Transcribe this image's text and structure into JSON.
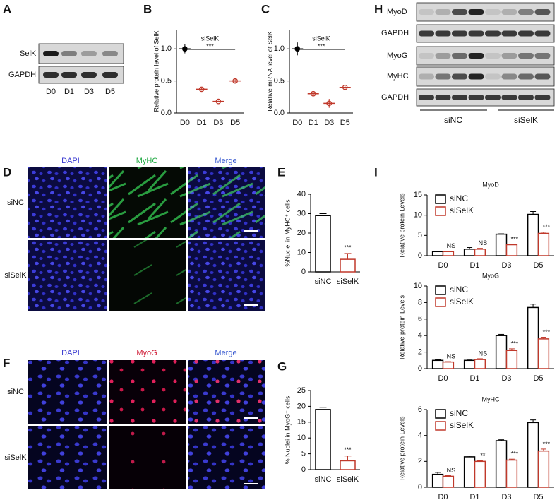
{
  "figure": {
    "letters": [
      "A",
      "B",
      "C",
      "D",
      "E",
      "F",
      "G",
      "H",
      "I"
    ],
    "blot_a": {
      "rows": [
        "SelK",
        "GAPDH"
      ],
      "lanes": [
        "D0",
        "D1",
        "D3",
        "D5"
      ]
    },
    "panel_d": {
      "columns": [
        "DAPI",
        "MyHC",
        "Merge"
      ],
      "rows": [
        "siNC",
        "siSelK"
      ]
    },
    "panel_f": {
      "columns": [
        "DAPI",
        "MyoG",
        "Merge"
      ],
      "rows": [
        "siNC",
        "siSelK"
      ]
    },
    "blot_h": {
      "rows": [
        "MyoD",
        "GAPDH",
        "MyoG",
        "MyHC",
        "GAPDH"
      ],
      "groups": [
        "siNC",
        "siSelK"
      ]
    }
  },
  "chart_data": [
    {
      "type": "dot",
      "y_label": "Relative protein level of SelK",
      "categories": [
        "D0",
        "D1",
        "D3",
        "D5"
      ],
      "values": [
        1.0,
        0.37,
        0.18,
        0.5
      ],
      "errors": [
        0.07,
        0.02,
        0.01,
        0.04
      ],
      "colors": [
        "#000000",
        "#c0392b",
        "#c0392b",
        "#c0392b"
      ],
      "annotation": "siSelK",
      "significance": "***",
      "ylim": [
        0,
        1.3
      ],
      "yticks": [
        {
          "value": 0,
          "label": "0.0"
        },
        0.5,
        {
          "value": 1,
          "label": "1.0"
        }
      ]
    },
    {
      "type": "dot",
      "y_label": "Relative mRNA level of SelK",
      "categories": [
        "D0",
        "D1",
        "D3",
        "D5"
      ],
      "values": [
        1.0,
        0.3,
        0.15,
        0.4
      ],
      "errors": [
        0.1,
        0.04,
        0.07,
        0.04
      ],
      "colors": [
        "#000000",
        "#c0392b",
        "#c0392b",
        "#c0392b"
      ],
      "annotation": "siSelK",
      "significance": "***",
      "ylim": [
        0,
        1.3
      ],
      "yticks": [
        {
          "value": 0,
          "label": "0.0"
        },
        0.5,
        {
          "value": 1,
          "label": "1.0"
        }
      ]
    },
    {
      "type": "bar",
      "y_label": "%Nuclei in MyHC⁺ cells",
      "categories": [
        "siNC",
        "siSelK"
      ],
      "values": [
        29,
        6.5
      ],
      "errors": [
        1,
        3
      ],
      "colors": [
        "#000000",
        "#c0392b"
      ],
      "annotations": [
        null,
        "***"
      ],
      "ylim": [
        0,
        40
      ],
      "yticks": [
        0,
        10,
        20,
        30,
        40
      ]
    },
    {
      "type": "bar",
      "y_label": "% Nuclei in MyoG⁺ cells",
      "categories": [
        "siNC",
        "siSelK"
      ],
      "values": [
        19,
        2.8
      ],
      "errors": [
        0.7,
        1.5
      ],
      "colors": [
        "#000000",
        "#c0392b"
      ],
      "annotations": [
        null,
        "***"
      ],
      "ylim": [
        0,
        25
      ],
      "yticks": [
        0,
        5,
        10,
        15,
        20,
        25
      ]
    },
    {
      "type": "grouped_bar",
      "title": "MyoD",
      "y_label": "Relative protein Levels",
      "categories": [
        "D0",
        "D1",
        "D3",
        "D5"
      ],
      "series": [
        {
          "name": "siNC",
          "color": "#000000",
          "values": [
            1.0,
            1.6,
            5.3,
            10.2
          ],
          "errors": [
            0.1,
            0.4,
            0.1,
            0.7
          ]
        },
        {
          "name": "siSelK",
          "color": "#c0392b",
          "values": [
            1.0,
            1.6,
            2.7,
            5.5
          ],
          "errors": [
            0.1,
            0.2,
            0.1,
            0.3
          ],
          "annotations": [
            "NS",
            "NS",
            "***",
            "***"
          ]
        }
      ],
      "ylim": [
        0,
        15
      ],
      "yticks": [
        0,
        5,
        10,
        15
      ],
      "legend": "upper left"
    },
    {
      "type": "grouped_bar",
      "title": "MyoG",
      "y_label": "Relative protein Levels",
      "categories": [
        "D0",
        "D1",
        "D3",
        "D5"
      ],
      "series": [
        {
          "name": "siNC",
          "color": "#000000",
          "values": [
            1.0,
            1.0,
            4.0,
            7.4
          ],
          "errors": [
            0.1,
            0.05,
            0.15,
            0.4
          ]
        },
        {
          "name": "siSelK",
          "color": "#c0392b",
          "values": [
            0.8,
            1.1,
            2.2,
            3.6
          ],
          "errors": [
            0.05,
            0.1,
            0.2,
            0.2
          ],
          "annotations": [
            "NS",
            "NS",
            "***",
            "***"
          ]
        }
      ],
      "ylim": [
        0,
        10
      ],
      "yticks": [
        0,
        2,
        4,
        6,
        8,
        10
      ],
      "legend": "upper left"
    },
    {
      "type": "grouped_bar",
      "title": "MyHC",
      "y_label": "Relative protein Levels",
      "categories": [
        "D0",
        "D1",
        "D3",
        "D5"
      ],
      "series": [
        {
          "name": "siNC",
          "color": "#000000",
          "values": [
            1.0,
            2.35,
            3.6,
            5.0
          ],
          "errors": [
            0.15,
            0.07,
            0.07,
            0.2
          ]
        },
        {
          "name": "siSelK",
          "color": "#c0392b",
          "values": [
            0.85,
            2.0,
            2.1,
            2.8
          ],
          "errors": [
            0.05,
            0.05,
            0.07,
            0.15
          ],
          "annotations": [
            "NS",
            "**",
            "***",
            "***"
          ]
        }
      ],
      "ylim": [
        0,
        6
      ],
      "yticks": [
        0,
        2,
        4,
        6
      ],
      "legend": "upper left"
    }
  ]
}
